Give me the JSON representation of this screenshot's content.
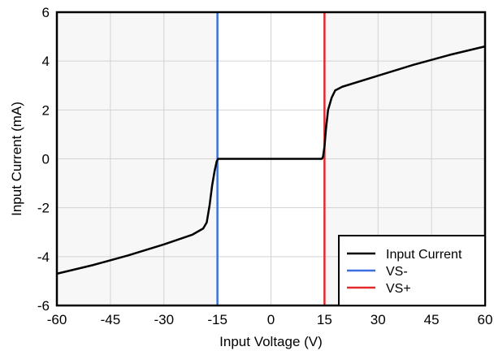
{
  "chart_data": {
    "type": "line",
    "xlabel": "Input Voltage (V)",
    "ylabel": "Input Current (mA)",
    "xlim": [
      -60,
      60
    ],
    "ylim": [
      -6,
      6
    ],
    "x_ticks": [
      "-60",
      "-45",
      "-30",
      "-15",
      "0",
      "15",
      "30",
      "45",
      "60"
    ],
    "y_ticks": [
      "6",
      "4",
      "2",
      "0",
      "-2",
      "-4",
      "-6"
    ],
    "grid": true,
    "shaded_regions": [
      [
        -60,
        -15
      ],
      [
        15,
        60
      ]
    ],
    "legend_position": "bottom-right",
    "series": [
      {
        "name": "Input Current",
        "color": "#000000",
        "points": [
          [
            -60,
            -4.7
          ],
          [
            -50,
            -4.35
          ],
          [
            -40,
            -3.95
          ],
          [
            -30,
            -3.5
          ],
          [
            -22,
            -3.1
          ],
          [
            -19,
            -2.85
          ],
          [
            -18,
            -2.6
          ],
          [
            -17.2,
            -1.9
          ],
          [
            -16.5,
            -1.1
          ],
          [
            -15.8,
            -0.5
          ],
          [
            -15.2,
            -0.1
          ],
          [
            -14.8,
            0.0
          ],
          [
            14.3,
            0.0
          ],
          [
            14.6,
            0.1
          ],
          [
            15.0,
            0.5
          ],
          [
            15.4,
            1.2
          ],
          [
            16.0,
            2.0
          ],
          [
            17.0,
            2.5
          ],
          [
            18.0,
            2.8
          ],
          [
            20.0,
            2.95
          ],
          [
            30,
            3.4
          ],
          [
            40,
            3.85
          ],
          [
            50,
            4.25
          ],
          [
            60,
            4.6
          ]
        ]
      },
      {
        "name": "VS-",
        "color": "#3b6fe0",
        "vline": -15
      },
      {
        "name": "VS+",
        "color": "#e32b2b",
        "vline": 15
      }
    ]
  }
}
